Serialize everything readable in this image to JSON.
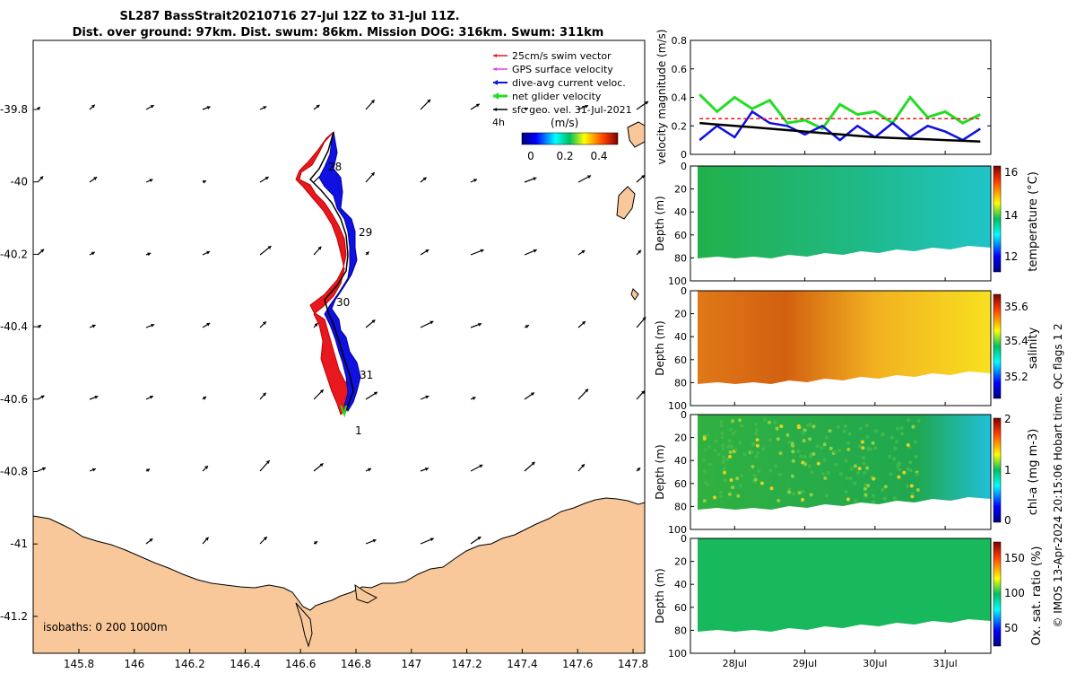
{
  "title": {
    "line1": "SL287 BassStrait20210716 27-Jul 12Z to 31-Jul 11Z.",
    "line2": "Dist. over ground: 97km. Dist. swum: 86km. Mission DOG: 316km. Swum: 311km"
  },
  "colors": {
    "land": "#f8c89a",
    "swim_vector": "#e8191e",
    "gps_surface": "#e040e0",
    "dive_avg_current": "#1010e0",
    "net_glider": "#22dd22",
    "sfc_geo": "#000000"
  },
  "map": {
    "x_ticks": [
      "145.8",
      "146",
      "146.2",
      "146.4",
      "146.6",
      "146.8",
      "147",
      "147.2",
      "147.4",
      "147.6",
      "147.8"
    ],
    "y_ticks": [
      "-39.8",
      "-40",
      "-40.2",
      "-40.4",
      "-40.6",
      "-40.8",
      "-41",
      "-41.2"
    ],
    "day_labels": [
      "28",
      "29",
      "30",
      "31",
      "1"
    ],
    "isobaths_label": "isobaths: 0   200  1000m",
    "legend": [
      {
        "label": "25cm/s swim vector"
      },
      {
        "label": "GPS surface velocity"
      },
      {
        "label": "dive-avg current veloc."
      },
      {
        "label": "net glider velocity"
      },
      {
        "label": "sfc geo. vel. 31-Jul-2021"
      }
    ],
    "legend_extra": "4h",
    "colorbar": {
      "label": "(m/s)",
      "ticks": [
        "0",
        "0.2",
        "0.4"
      ],
      "range": [
        0,
        0.5
      ]
    }
  },
  "right_panels": {
    "velocity": {
      "ylabel": "velocity magnitude (m/s)",
      "y_ticks": [
        "0",
        "0.2",
        "0.4",
        "0.6",
        "0.8"
      ],
      "ylim": [
        0,
        0.8
      ]
    },
    "temperature": {
      "ylabel": "Depth (m)",
      "clabel": "temperature (°C)",
      "c_ticks": [
        "12",
        "14",
        "16"
      ],
      "crange": [
        11,
        16
      ]
    },
    "salinity": {
      "ylabel": "Depth (m)",
      "clabel": "salinity",
      "c_ticks": [
        "35.2",
        "35.4",
        "35.6"
      ],
      "crange": [
        35.1,
        35.7
      ]
    },
    "chla": {
      "ylabel": "Depth (m)",
      "clabel": "chl-a (mg m-3)",
      "c_ticks": [
        "0",
        "1",
        "2"
      ],
      "crange": [
        0,
        2
      ]
    },
    "oxygen": {
      "ylabel": "Depth (m)",
      "clabel": "Ox. sat. ratio (%)",
      "c_ticks": [
        "50",
        "100",
        "150"
      ],
      "crange": [
        25,
        175
      ]
    },
    "depth_ticks": [
      "0",
      "20",
      "40",
      "60",
      "80",
      "100"
    ],
    "time_ticks": [
      "28Jul",
      "29Jul",
      "30Jul",
      "31Jul"
    ]
  },
  "footer": "© IMOS 13-Apr-2024 20:15:06 Hobart time. QC flags 1  2",
  "chart_data": {
    "type": "line",
    "title": "SL287 BassStrait20210716 27-Jul 12Z to 31-Jul 11Z.",
    "xlabel": "",
    "ylabel": "velocity magnitude (m/s)",
    "ylim": [
      0,
      0.8
    ],
    "x": [
      27.5,
      27.75,
      28.0,
      28.25,
      28.5,
      28.75,
      29.0,
      29.25,
      29.5,
      29.75,
      30.0,
      30.25,
      30.5,
      30.75,
      31.0,
      31.25,
      31.5
    ],
    "series": [
      {
        "name": "net glider velocity",
        "values": [
          0.42,
          0.3,
          0.4,
          0.32,
          0.38,
          0.22,
          0.24,
          0.18,
          0.35,
          0.28,
          0.3,
          0.22,
          0.4,
          0.26,
          0.3,
          0.22,
          0.28
        ]
      },
      {
        "name": "dive-avg current veloc.",
        "values": [
          0.1,
          0.2,
          0.12,
          0.3,
          0.22,
          0.2,
          0.14,
          0.2,
          0.1,
          0.2,
          0.12,
          0.22,
          0.12,
          0.2,
          0.16,
          0.1,
          0.18
        ]
      },
      {
        "name": "sfc geo. vel. 31-Jul-2021",
        "values": [
          0.22,
          0.21,
          0.2,
          0.19,
          0.18,
          0.17,
          0.16,
          0.15,
          0.14,
          0.13,
          0.12,
          0.115,
          0.11,
          0.105,
          0.1,
          0.095,
          0.09
        ]
      },
      {
        "name": "25cm/s swim vector",
        "values": [
          0.25,
          0.25,
          0.25,
          0.25,
          0.25,
          0.25,
          0.25,
          0.25,
          0.25,
          0.25,
          0.25,
          0.25,
          0.25,
          0.25,
          0.25,
          0.25,
          0.25
        ]
      }
    ]
  }
}
